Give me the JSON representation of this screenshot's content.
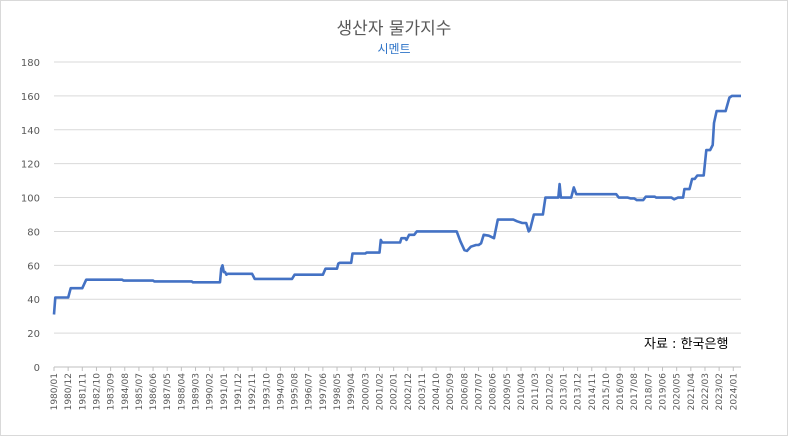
{
  "chart_data": {
    "type": "line",
    "title": "생산자 물가지수",
    "subtitle": "시멘트",
    "source_note": "자료 : 한국은행",
    "xlabel": "",
    "ylabel": "",
    "ylim": [
      0,
      180
    ],
    "y_ticks": [
      "0",
      "20",
      "40",
      "60",
      "80",
      "100",
      "120",
      "140",
      "160",
      "180"
    ],
    "grid": true,
    "legend": "none",
    "line_color": "#4472C4",
    "x_range": [
      "1980/01",
      "2024/07"
    ],
    "x_ticks": [
      "1980/01",
      "1980/12",
      "1981/11",
      "1982/10",
      "1983/09",
      "1984/08",
      "1985/07",
      "1986/06",
      "1987/05",
      "1988/04",
      "1989/03",
      "1990/02",
      "1991/01",
      "1991/12",
      "1992/11",
      "1993/10",
      "1994/09",
      "1995/08",
      "1996/07",
      "1997/06",
      "1998/05",
      "1999/04",
      "2000/03",
      "2001/02",
      "2002/01",
      "2002/12",
      "2003/11",
      "2004/10",
      "2005/09",
      "2006/08",
      "2007/07",
      "2008/06",
      "2009/05",
      "2010/04",
      "2011/03",
      "2012/02",
      "2013/01",
      "2013/12",
      "2014/11",
      "2015/10",
      "2016/09",
      "2017/08",
      "2018/07",
      "2019/06",
      "2020/05",
      "2021/04",
      "2022/03",
      "2023/02",
      "2024/01"
    ],
    "series": [
      {
        "points": [
          [
            "1980/01",
            31
          ],
          [
            "1980/02",
            41
          ],
          [
            "1980/12",
            41
          ],
          [
            "1981/02",
            46.5
          ],
          [
            "1981/11",
            46.5
          ],
          [
            "1982/02",
            51.5
          ],
          [
            "1984/06",
            51.5
          ],
          [
            "1984/07",
            51
          ],
          [
            "1986/06",
            51
          ],
          [
            "1986/07",
            50.5
          ],
          [
            "1988/12",
            50.5
          ],
          [
            "1989/01",
            50
          ],
          [
            "1990/10",
            50
          ],
          [
            "1990/11",
            58
          ],
          [
            "1990/12",
            60
          ],
          [
            "1991/01",
            56
          ],
          [
            "1991/02",
            56
          ],
          [
            "1991/03",
            54.5
          ],
          [
            "1991/04",
            55
          ],
          [
            "1992/11",
            55
          ],
          [
            "1993/01",
            52
          ],
          [
            "1995/06",
            52
          ],
          [
            "1995/08",
            54.5
          ],
          [
            "1997/06",
            54.5
          ],
          [
            "1997/08",
            58
          ],
          [
            "1998/05",
            58
          ],
          [
            "1998/06",
            61
          ],
          [
            "1998/07",
            61.5
          ],
          [
            "1999/04",
            61.5
          ],
          [
            "1999/05",
            67
          ],
          [
            "2000/03",
            67
          ],
          [
            "2000/04",
            67.5
          ],
          [
            "2001/02",
            67.5
          ],
          [
            "2001/03",
            75
          ],
          [
            "2001/04",
            73.5
          ],
          [
            "2002/06",
            73.5
          ],
          [
            "2002/07",
            76
          ],
          [
            "2002/10",
            76
          ],
          [
            "2002/11",
            75
          ],
          [
            "2003/01",
            78
          ],
          [
            "2003/05",
            78
          ],
          [
            "2003/07",
            80
          ],
          [
            "2006/02",
            80
          ],
          [
            "2006/05",
            74
          ],
          [
            "2006/08",
            69
          ],
          [
            "2006/10",
            68.5
          ],
          [
            "2007/01",
            71
          ],
          [
            "2007/05",
            72
          ],
          [
            "2007/07",
            72
          ],
          [
            "2007/09",
            73
          ],
          [
            "2007/11",
            78
          ],
          [
            "2008/03",
            77.5
          ],
          [
            "2008/07",
            76
          ],
          [
            "2008/10",
            87
          ],
          [
            "2009/10",
            87
          ],
          [
            "2010/01",
            86
          ],
          [
            "2010/05",
            85
          ],
          [
            "2010/08",
            85
          ],
          [
            "2010/10",
            80
          ],
          [
            "2010/11",
            81
          ],
          [
            "2011/02",
            90
          ],
          [
            "2011/09",
            90
          ],
          [
            "2011/11",
            100
          ],
          [
            "2012/09",
            100
          ],
          [
            "2012/10",
            108
          ],
          [
            "2012/11",
            100
          ],
          [
            "2013/07",
            100
          ],
          [
            "2013/09",
            106
          ],
          [
            "2013/11",
            102
          ],
          [
            "2016/06",
            102
          ],
          [
            "2016/08",
            100
          ],
          [
            "2017/03",
            100
          ],
          [
            "2017/05",
            99.5
          ],
          [
            "2017/08",
            99.5
          ],
          [
            "2017/10",
            98.5
          ],
          [
            "2018/03",
            98.5
          ],
          [
            "2018/05",
            100.5
          ],
          [
            "2018/12",
            100.5
          ],
          [
            "2019/01",
            100
          ],
          [
            "2020/01",
            100
          ],
          [
            "2020/03",
            99
          ],
          [
            "2020/06",
            100
          ],
          [
            "2020/10",
            100
          ],
          [
            "2020/11",
            105
          ],
          [
            "2021/03",
            105
          ],
          [
            "2021/05",
            111
          ],
          [
            "2021/07",
            111
          ],
          [
            "2021/09",
            113
          ],
          [
            "2022/02",
            113
          ],
          [
            "2022/04",
            128
          ],
          [
            "2022/07",
            128
          ],
          [
            "2022/09",
            131
          ],
          [
            "2022/10",
            144
          ],
          [
            "2022/12",
            151
          ],
          [
            "2023/07",
            151
          ],
          [
            "2023/10",
            159
          ],
          [
            "2023/12",
            160
          ],
          [
            "2024/07",
            160
          ]
        ]
      }
    ]
  }
}
